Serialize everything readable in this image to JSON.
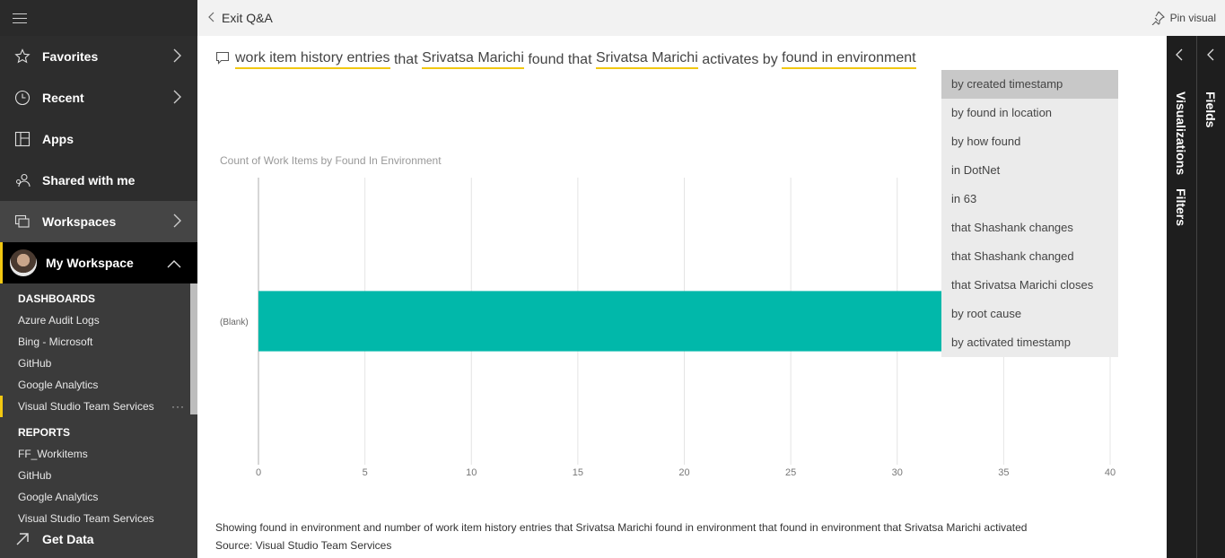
{
  "sidebar": {
    "nav": [
      {
        "label": "Favorites",
        "icon": "star-icon"
      },
      {
        "label": "Recent",
        "icon": "clock-icon"
      },
      {
        "label": "Apps",
        "icon": "apps-icon"
      },
      {
        "label": "Shared with me",
        "icon": "shared-icon"
      },
      {
        "label": "Workspaces",
        "icon": "workspaces-icon"
      }
    ],
    "my_workspace": "My Workspace",
    "dashboards_header": "DASHBOARDS",
    "dashboards": [
      "Azure Audit Logs",
      "Bing - Microsoft",
      "GitHub",
      "Google Analytics",
      "Visual Studio Team Services"
    ],
    "dashboard_more": "···",
    "reports_header": "REPORTS",
    "reports": [
      "FF_Workitems",
      "GitHub",
      "Google Analytics",
      "Visual Studio Team Services"
    ],
    "get_data": "Get Data"
  },
  "topbar": {
    "exit_label": "Exit Q&A",
    "pin_label": "Pin visual"
  },
  "question": {
    "parts": [
      {
        "text": "work item history entries",
        "underline": true
      },
      {
        "text": " that ",
        "underline": false
      },
      {
        "text": "Srivatsa Marichi",
        "underline": true
      },
      {
        "text": " found that ",
        "underline": false
      },
      {
        "text": "Srivatsa Marichi",
        "underline": true
      },
      {
        "text": " activates by ",
        "underline": false
      },
      {
        "text": "found in environment",
        "underline": true
      }
    ]
  },
  "suggestions": [
    "by created timestamp",
    "by found in location",
    "by how found",
    "in DotNet",
    "in 63",
    "that Shashank changes",
    "that Shashank changed",
    "that Srivatsa Marichi closes",
    "by root cause",
    "by activated timestamp"
  ],
  "chart_data": {
    "type": "bar",
    "orientation": "horizontal",
    "title": "Count of Work Items by Found In Environment",
    "categories": [
      "(Blank)"
    ],
    "values": [
      33
    ],
    "xlim": [
      0,
      40
    ],
    "xticks": [
      "0",
      "5",
      "10",
      "15",
      "20",
      "25",
      "30",
      "35",
      "40"
    ],
    "color": "#01b8aa",
    "grid": true
  },
  "footer": {
    "description": "Showing found in environment and number of work item history entries that Srivatsa Marichi found in environment that found in environment that Srivatsa Marichi activated",
    "source": "Source: Visual Studio Team Services"
  },
  "panes": {
    "visualizations": "Visualizations",
    "filters": "Filters",
    "fields": "Fields"
  },
  "colors": {
    "accent": "#f2c811",
    "bar": "#01b8aa"
  }
}
